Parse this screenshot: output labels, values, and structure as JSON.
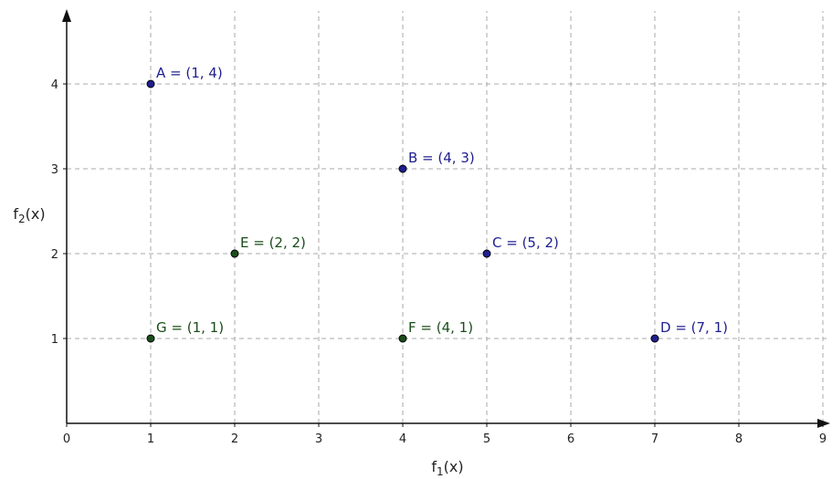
{
  "chart_data": {
    "type": "scatter",
    "xlabel": "f",
    "xlabel_sub": "1",
    "xlabel_suffix": "(x)",
    "ylabel": "f",
    "ylabel_sub": "2",
    "ylabel_suffix": "(x)",
    "xlim": [
      0,
      9
    ],
    "ylim": [
      0,
      4.5
    ],
    "x_ticks": [
      0,
      1,
      2,
      3,
      4,
      5,
      6,
      7,
      8,
      9
    ],
    "y_ticks": [
      1,
      2,
      3,
      4
    ],
    "grid": true,
    "points": [
      {
        "name": "A",
        "x": 1,
        "y": 4,
        "label": "A = (1, 4)",
        "color": "#1f1f8f"
      },
      {
        "name": "B",
        "x": 4,
        "y": 3,
        "label": "B = (4, 3)",
        "color": "#1f1f8f"
      },
      {
        "name": "C",
        "x": 5,
        "y": 2,
        "label": "C = (5, 2)",
        "color": "#1f1f8f"
      },
      {
        "name": "D",
        "x": 7,
        "y": 1,
        "label": "D = (7, 1)",
        "color": "#1f1f8f"
      },
      {
        "name": "E",
        "x": 2,
        "y": 2,
        "label": "E = (2, 2)",
        "color": "#1a4d1a"
      },
      {
        "name": "F",
        "x": 4,
        "y": 1,
        "label": "F = (4, 1)",
        "color": "#1a4d1a"
      },
      {
        "name": "G",
        "x": 1,
        "y": 1,
        "label": "G = (1, 1)",
        "color": "#1a4d1a"
      }
    ]
  }
}
